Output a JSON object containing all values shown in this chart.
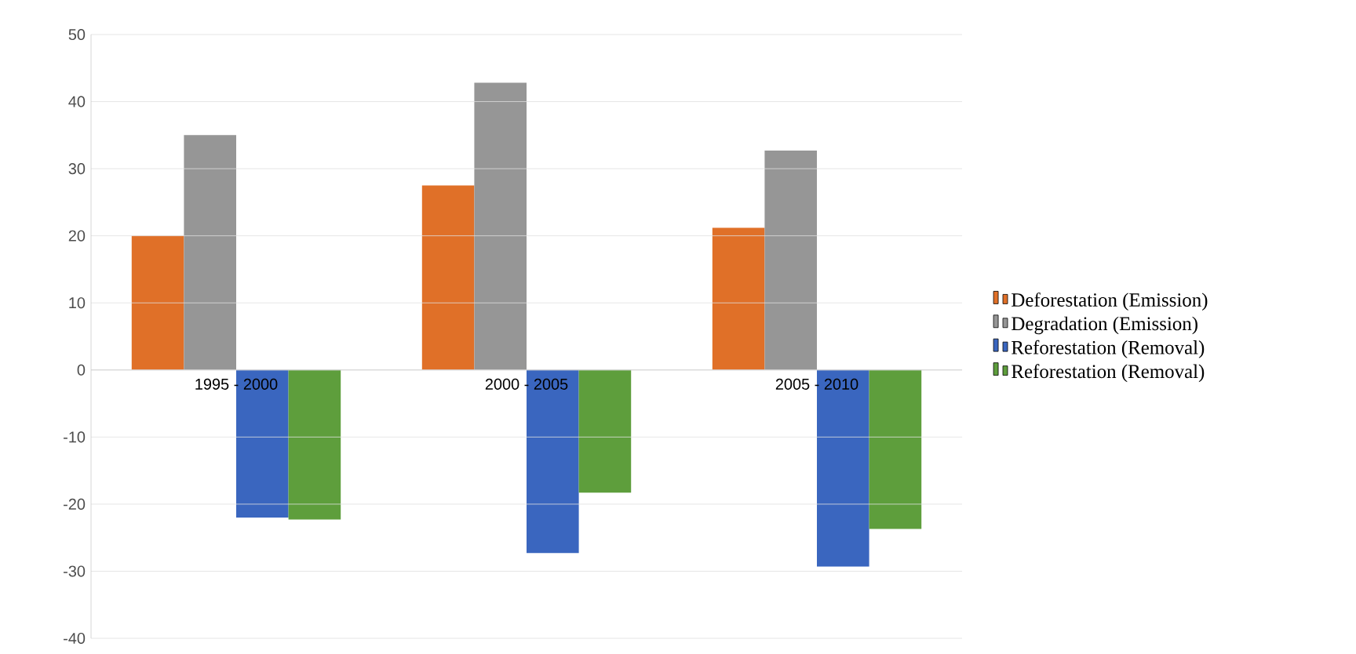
{
  "chart_data": {
    "type": "bar",
    "categories": [
      "1995 - 2000",
      "2000 - 2005",
      "2005 - 2010"
    ],
    "series": [
      {
        "name": "Deforestation (Emission)",
        "color": "#e07028",
        "values": [
          20,
          27.5,
          21.2
        ]
      },
      {
        "name": "Degradation (Emission)",
        "color": "#969696",
        "values": [
          35,
          42.8,
          32.7
        ]
      },
      {
        "name": "Reforestation (Removal)",
        "color": "#3a66bf",
        "values": [
          -22,
          -27.3,
          -29.3
        ]
      },
      {
        "name": "Reforestation (Removal)",
        "color": "#5e9e3c",
        "values": [
          -22.3,
          -18.3,
          -23.7
        ]
      }
    ],
    "ylim": [
      -40,
      50
    ],
    "yticks": [
      -40,
      -30,
      -20,
      -10,
      0,
      10,
      20,
      30,
      40,
      50
    ],
    "grid": "y",
    "legend": "right"
  }
}
